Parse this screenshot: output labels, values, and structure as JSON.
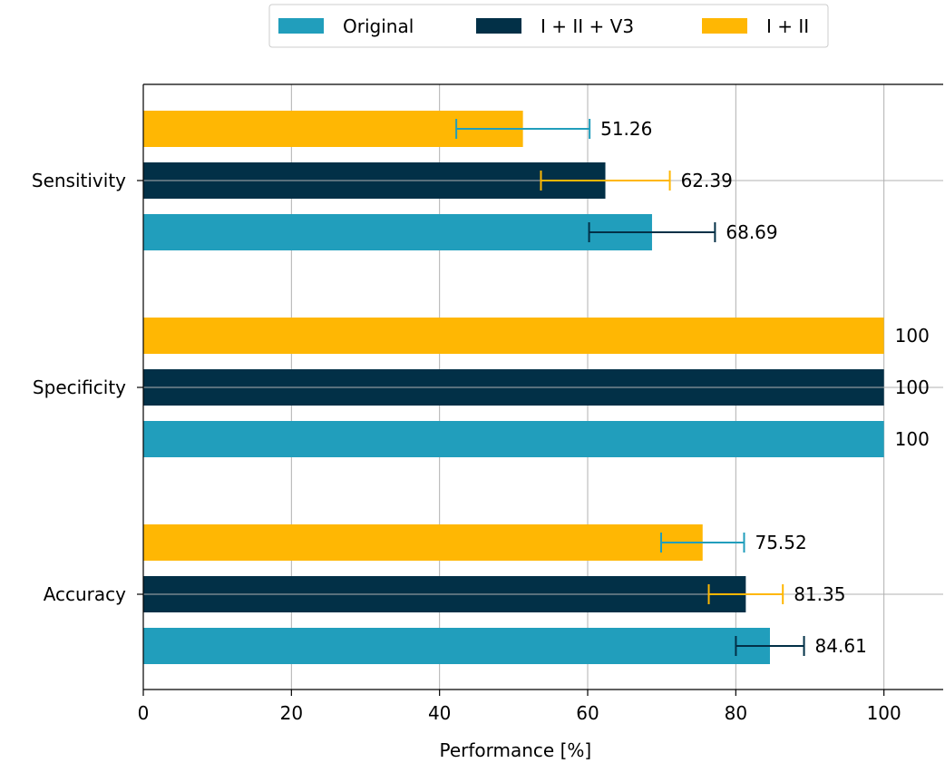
{
  "chart_data": {
    "type": "bar",
    "orientation": "horizontal",
    "categories": [
      "Accuracy",
      "Specificity",
      "Sensitivity"
    ],
    "series": [
      {
        "name": "Original",
        "color": "#219ebc",
        "values": [
          84.61,
          100,
          68.69
        ],
        "error": [
          4.6,
          0,
          8.5
        ],
        "error_color": "#023047"
      },
      {
        "name": "I + II + V3",
        "color": "#023047",
        "values": [
          81.35,
          100,
          62.39
        ],
        "error": [
          5.0,
          0,
          8.7
        ],
        "error_color": "#ffb703"
      },
      {
        "name": "I + II",
        "color": "#ffb703",
        "values": [
          75.52,
          100,
          51.26
        ],
        "error": [
          5.6,
          0,
          9.0
        ],
        "error_color": "#219ebc"
      }
    ],
    "data_labels": [
      [
        "84.61",
        "100",
        "68.69"
      ],
      [
        "81.35",
        "100",
        "62.39"
      ],
      [
        "75.52",
        "100",
        "51.26"
      ]
    ],
    "xlabel": "Performance [%]",
    "ylabel": "",
    "xlim": [
      0,
      108
    ],
    "xticks": [
      0,
      20,
      40,
      60,
      80,
      100
    ],
    "xtick_labels": [
      "0",
      "20",
      "40",
      "60",
      "80",
      "100"
    ],
    "grid": true,
    "legend": {
      "placement": "top-center-outside",
      "columns": 3,
      "entries": [
        "Original",
        "I + II + V3",
        "I + II"
      ]
    }
  }
}
